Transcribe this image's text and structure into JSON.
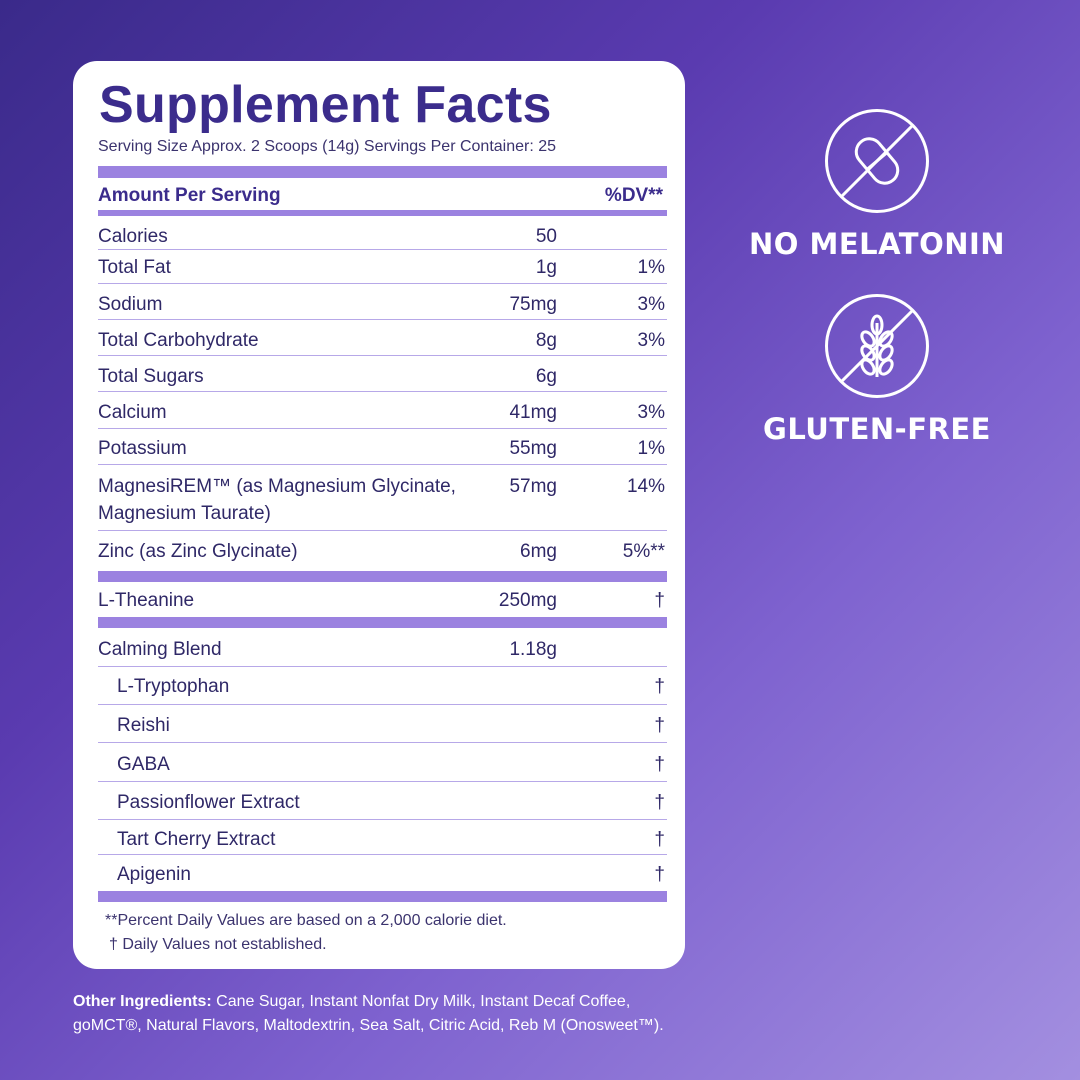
{
  "facts": {
    "title": "Supplement Facts",
    "serving": "Serving Size Approx. 2 Scoops (14g)  Servings Per Container: 25",
    "header_amount": "Amount Per Serving",
    "header_dv": "%DV**",
    "rows": [
      {
        "name": "Calories",
        "amount": "50",
        "dv": ""
      },
      {
        "name": "Total Fat",
        "amount": "1g",
        "dv": "1%"
      },
      {
        "name": "Sodium",
        "amount": "75mg",
        "dv": "3%"
      },
      {
        "name": "Total Carbohydrate",
        "amount": "8g",
        "dv": "3%"
      },
      {
        "name": "Total Sugars",
        "amount": "6g",
        "dv": ""
      },
      {
        "name": "Calcium",
        "amount": "41mg",
        "dv": "3%"
      },
      {
        "name": "Potassium",
        "amount": "55mg",
        "dv": "1%"
      },
      {
        "name": "MagnesiREM™ (as Magnesium Glycinate,",
        "name2": "Magnesium Taurate)",
        "amount": "57mg",
        "dv": "14%"
      },
      {
        "name": "Zinc (as Zinc Glycinate)",
        "amount": "6mg",
        "dv": "5%**"
      },
      {
        "name": "L-Theanine",
        "amount": "250mg",
        "dv": "†"
      },
      {
        "name": "Calming Blend",
        "amount": "1.18g",
        "dv": ""
      },
      {
        "name": "L-Tryptophan",
        "amount": "",
        "dv": "†"
      },
      {
        "name": "Reishi",
        "amount": "",
        "dv": "†"
      },
      {
        "name": "GABA",
        "amount": "",
        "dv": "†"
      },
      {
        "name": "Passionflower Extract",
        "amount": "",
        "dv": "†"
      },
      {
        "name": "Tart Cherry Extract",
        "amount": "",
        "dv": "†"
      },
      {
        "name": "Apigenin",
        "amount": "",
        "dv": "†"
      }
    ],
    "footnote1": "**Percent Daily Values are based on a 2,000 calorie diet.",
    "footnote2": "† Daily Values not established."
  },
  "other_ingredients": {
    "label": "Other Ingredients:",
    "line1": " Cane Sugar, Instant Nonfat Dry Milk, Instant Decaf Coffee,",
    "line2": "goMCT®, Natural Flavors, Maltodextrin, Sea Salt, Citric Acid, Reb M (Onosweet™)."
  },
  "badges": [
    {
      "label": "NO MELATONIN",
      "icon": "no-pill-icon"
    },
    {
      "label": "GLUTEN-FREE",
      "icon": "no-wheat-icon"
    }
  ],
  "colors": {
    "accent": "#9b82e0",
    "title": "#3b2c8c"
  }
}
